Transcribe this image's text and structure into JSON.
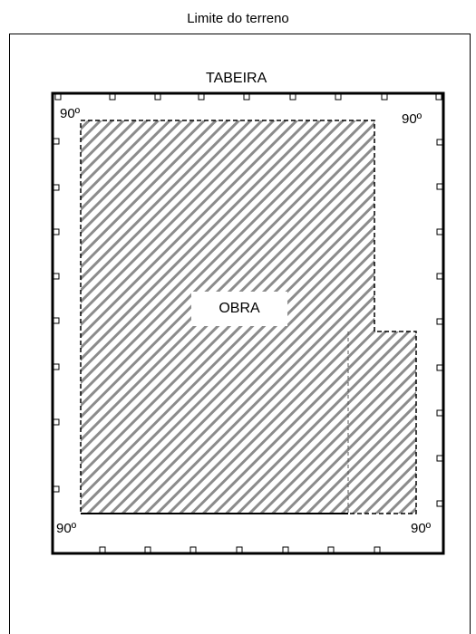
{
  "diagram": {
    "terrain_label": "Limite do terreno",
    "fence_label": "TABEIRA",
    "work_label": "OBRA",
    "corner_angles": {
      "top_left": "90º",
      "top_right": "90º",
      "bottom_left": "90º",
      "bottom_right": "90º"
    }
  },
  "colors": {
    "line": "#000000",
    "hatch": "#8c8c8c",
    "background": "#ffffff"
  }
}
